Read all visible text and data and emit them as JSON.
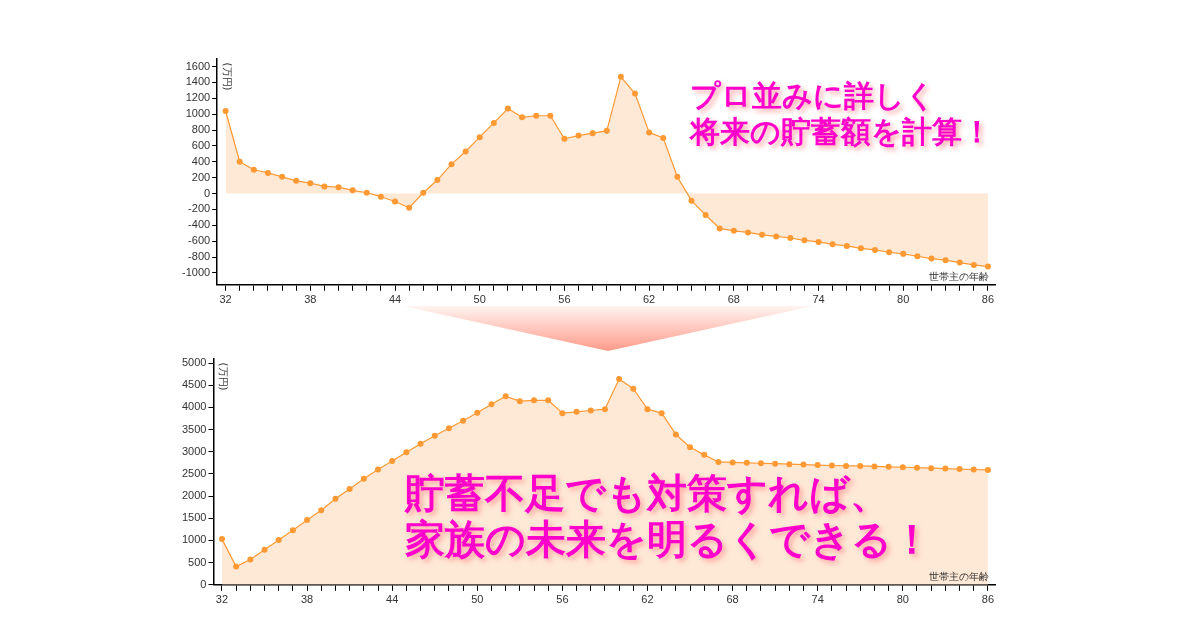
{
  "chart_data": [
    {
      "type": "area",
      "ylabel": "(万円)",
      "xlabel": "世帯主の年齢",
      "annotations": [
        "プロ並みに詳しく",
        "将来の貯蓄額を計算！"
      ],
      "x": [
        32,
        33,
        34,
        35,
        36,
        37,
        38,
        39,
        40,
        41,
        42,
        43,
        44,
        45,
        46,
        47,
        48,
        49,
        50,
        51,
        52,
        53,
        54,
        55,
        56,
        57,
        58,
        59,
        60,
        61,
        62,
        63,
        64,
        65,
        66,
        67,
        68,
        69,
        70,
        71,
        72,
        73,
        74,
        75,
        76,
        77,
        78,
        79,
        80,
        81,
        82,
        83,
        84,
        85,
        86
      ],
      "series": [
        {
          "color": "#ff9933",
          "values": [
            1040,
            400,
            300,
            260,
            210,
            160,
            130,
            90,
            80,
            40,
            10,
            -40,
            -100,
            -180,
            10,
            170,
            370,
            530,
            710,
            890,
            1070,
            960,
            980,
            980,
            690,
            730,
            760,
            790,
            1470,
            1260,
            770,
            700,
            210,
            -90,
            -270,
            -440,
            -470,
            -490,
            -520,
            -540,
            -560,
            -590,
            -610,
            -640,
            -660,
            -690,
            -710,
            -740,
            -760,
            -790,
            -820,
            -840,
            -870,
            -900,
            -920
          ]
        }
      ],
      "xlim": [
        31.4,
        86.5
      ],
      "ylim": [
        -1150,
        1700
      ],
      "xticks": [
        32,
        {
          "value": 33,
          "label": null
        },
        {
          "value": 34,
          "label": null
        },
        {
          "value": 35,
          "label": null
        },
        {
          "value": 36,
          "label": null
        },
        {
          "value": 37,
          "label": null
        },
        38,
        {
          "value": 39,
          "label": null
        },
        {
          "value": 40,
          "label": null
        },
        {
          "value": 41,
          "label": null
        },
        {
          "value": 42,
          "label": null
        },
        {
          "value": 43,
          "label": null
        },
        44,
        {
          "value": 45,
          "label": null
        },
        {
          "value": 46,
          "label": null
        },
        {
          "value": 47,
          "label": null
        },
        {
          "value": 48,
          "label": null
        },
        {
          "value": 49,
          "label": null
        },
        50,
        {
          "value": 51,
          "label": null
        },
        {
          "value": 52,
          "label": null
        },
        {
          "value": 53,
          "label": null
        },
        {
          "value": 54,
          "label": null
        },
        {
          "value": 55,
          "label": null
        },
        56,
        {
          "value": 57,
          "label": null
        },
        {
          "value": 58,
          "label": null
        },
        {
          "value": 59,
          "label": null
        },
        {
          "value": 60,
          "label": null
        },
        {
          "value": 61,
          "label": null
        },
        62,
        {
          "value": 63,
          "label": null
        },
        {
          "value": 64,
          "label": null
        },
        {
          "value": 65,
          "label": null
        },
        {
          "value": 66,
          "label": null
        },
        {
          "value": 67,
          "label": null
        },
        68,
        {
          "value": 69,
          "label": null
        },
        {
          "value": 70,
          "label": null
        },
        {
          "value": 71,
          "label": null
        },
        {
          "value": 72,
          "label": null
        },
        {
          "value": 73,
          "label": null
        },
        74,
        {
          "value": 75,
          "label": null
        },
        {
          "value": 76,
          "label": null
        },
        {
          "value": 77,
          "label": null
        },
        {
          "value": 78,
          "label": null
        },
        {
          "value": 79,
          "label": null
        },
        80,
        {
          "value": 81,
          "label": null
        },
        {
          "value": 82,
          "label": null
        },
        {
          "value": 83,
          "label": null
        },
        {
          "value": 84,
          "label": null
        },
        {
          "value": 85,
          "label": null
        },
        86
      ],
      "yticks": [
        -1000,
        -800,
        -600,
        -400,
        -200,
        0,
        200,
        400,
        600,
        800,
        1000,
        1200,
        1400,
        1600
      ],
      "grid": false,
      "legend": false,
      "marker": "circle"
    },
    {
      "type": "area",
      "ylabel": "(万円)",
      "xlabel": "世帯主の年齢",
      "annotations": [
        "貯蓄不足でも対策すれば、",
        "家族の未来を明るくできる！"
      ],
      "x": [
        32,
        33,
        34,
        35,
        36,
        37,
        38,
        39,
        40,
        41,
        42,
        43,
        44,
        45,
        46,
        47,
        48,
        49,
        50,
        51,
        52,
        53,
        54,
        55,
        56,
        57,
        58,
        59,
        60,
        61,
        62,
        63,
        64,
        65,
        66,
        67,
        68,
        69,
        70,
        71,
        72,
        73,
        74,
        75,
        76,
        77,
        78,
        79,
        80,
        81,
        82,
        83,
        84,
        85,
        86
      ],
      "series": [
        {
          "color": "#ff9933",
          "values": [
            1030,
            410,
            570,
            790,
            1010,
            1230,
            1460,
            1680,
            1940,
            2160,
            2390,
            2600,
            2790,
            2990,
            3180,
            3360,
            3530,
            3700,
            3880,
            4070,
            4250,
            4140,
            4160,
            4160,
            3870,
            3900,
            3930,
            3960,
            4640,
            4420,
            3960,
            3870,
            3390,
            3100,
            2930,
            2770,
            2760,
            2750,
            2740,
            2730,
            2720,
            2710,
            2700,
            2690,
            2680,
            2680,
            2670,
            2660,
            2650,
            2640,
            2630,
            2620,
            2610,
            2600,
            2590
          ]
        }
      ],
      "xlim": [
        31.4,
        86.5
      ],
      "ylim": [
        0,
        5100
      ],
      "xticks": [
        32,
        {
          "value": 33,
          "label": null
        },
        {
          "value": 34,
          "label": null
        },
        {
          "value": 35,
          "label": null
        },
        {
          "value": 36,
          "label": null
        },
        {
          "value": 37,
          "label": null
        },
        38,
        {
          "value": 39,
          "label": null
        },
        {
          "value": 40,
          "label": null
        },
        {
          "value": 41,
          "label": null
        },
        {
          "value": 42,
          "label": null
        },
        {
          "value": 43,
          "label": null
        },
        44,
        {
          "value": 45,
          "label": null
        },
        {
          "value": 46,
          "label": null
        },
        {
          "value": 47,
          "label": null
        },
        {
          "value": 48,
          "label": null
        },
        {
          "value": 49,
          "label": null
        },
        50,
        {
          "value": 51,
          "label": null
        },
        {
          "value": 52,
          "label": null
        },
        {
          "value": 53,
          "label": null
        },
        {
          "value": 54,
          "label": null
        },
        {
          "value": 55,
          "label": null
        },
        56,
        {
          "value": 57,
          "label": null
        },
        {
          "value": 58,
          "label": null
        },
        {
          "value": 59,
          "label": null
        },
        {
          "value": 60,
          "label": null
        },
        {
          "value": 61,
          "label": null
        },
        62,
        {
          "value": 63,
          "label": null
        },
        {
          "value": 64,
          "label": null
        },
        {
          "value": 65,
          "label": null
        },
        {
          "value": 66,
          "label": null
        },
        {
          "value": 67,
          "label": null
        },
        68,
        {
          "value": 69,
          "label": null
        },
        {
          "value": 70,
          "label": null
        },
        {
          "value": 71,
          "label": null
        },
        {
          "value": 72,
          "label": null
        },
        {
          "value": 73,
          "label": null
        },
        74,
        {
          "value": 75,
          "label": null
        },
        {
          "value": 76,
          "label": null
        },
        {
          "value": 77,
          "label": null
        },
        {
          "value": 78,
          "label": null
        },
        {
          "value": 79,
          "label": null
        },
        80,
        {
          "value": 81,
          "label": null
        },
        {
          "value": 82,
          "label": null
        },
        {
          "value": 83,
          "label": null
        },
        {
          "value": 84,
          "label": null
        },
        {
          "value": 85,
          "label": null
        },
        86
      ],
      "yticks": [
        0,
        500,
        1000,
        1500,
        2000,
        2500,
        3000,
        3500,
        4000,
        4500,
        5000
      ],
      "grid": false,
      "legend": false,
      "marker": "circle"
    }
  ]
}
